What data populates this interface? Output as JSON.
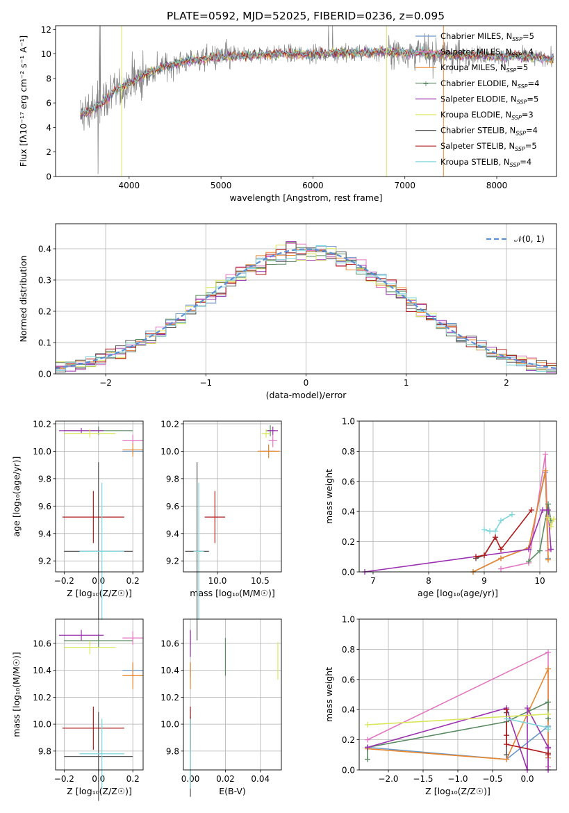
{
  "figure": {
    "title": "PLATE=0592, MJD=52025, FIBERID=0236, z=0.095"
  },
  "models": [
    {
      "label": "Chabrier MILES, N",
      "sub": "SSP",
      "tail": "=5",
      "color": "#6a98c8"
    },
    {
      "label": "Salpeter MILES, N",
      "sub": "SSP",
      "tail": "=4",
      "color": "#e377c2"
    },
    {
      "label": "Kroupa MILES, N",
      "sub": "SSP",
      "tail": "=5",
      "color": "#e8872e"
    },
    {
      "label": "Chabrier ELODIE, N",
      "sub": "SSP",
      "tail": "=4",
      "color": "#5a8a62"
    },
    {
      "label": "Salpeter ELODIE, N",
      "sub": "SSP",
      "tail": "=5",
      "color": "#9b30b0"
    },
    {
      "label": "Kroupa ELODIE, N",
      "sub": "SSP",
      "tail": "=3",
      "color": "#d9e65c"
    },
    {
      "label": "Chabrier STELIB, N",
      "sub": "SSP",
      "tail": "=4",
      "color": "#555555"
    },
    {
      "label": "Salpeter STELIB, N",
      "sub": "SSP",
      "tail": "=5",
      "color": "#b01a1a"
    },
    {
      "label": "Kroupa STELIB, N",
      "sub": "SSP",
      "tail": "=4",
      "color": "#7fd6dc"
    }
  ],
  "chart_data": [
    {
      "id": "spectrum",
      "type": "line",
      "xlabel": "wavelength [Angstrom, rest frame]",
      "ylabel": "Flux [fλ10⁻¹⁷ erg cm⁻² s⁻¹ A⁻¹]",
      "xlim": [
        3200,
        8650
      ],
      "ylim": [
        0,
        12.3
      ],
      "xticks": [
        4000,
        5000,
        6000,
        7000,
        8000
      ],
      "yticks": [
        0,
        2,
        4,
        6,
        8,
        10,
        12
      ],
      "data_series": {
        "name": "data",
        "color": "#808080"
      },
      "continuum": {
        "x": [
          3450,
          3600,
          3700,
          3850,
          4000,
          4200,
          4400,
          4600,
          4800,
          5000,
          5200,
          5400,
          5600,
          5800,
          6000,
          6300,
          6600,
          6800,
          7000,
          7300,
          7600,
          7800,
          8000,
          8200,
          8400,
          8600
        ],
        "y": [
          5.0,
          5.4,
          6.0,
          7.0,
          7.6,
          8.4,
          9.0,
          9.4,
          9.6,
          9.8,
          9.8,
          9.9,
          10.0,
          10.0,
          10.0,
          10.1,
          10.1,
          10.2,
          10.1,
          10.0,
          9.9,
          9.9,
          9.8,
          9.8,
          9.7,
          9.6
        ]
      },
      "legend_position": "top-right"
    },
    {
      "id": "residual-histogram",
      "type": "step",
      "xlabel": "(data-model)/error",
      "ylabel": "Normed distribution",
      "xlim": [
        -2.5,
        2.5
      ],
      "ylim": [
        0,
        0.48
      ],
      "xticks": [
        -2,
        -1,
        0,
        1,
        2
      ],
      "yticks": [
        0.0,
        0.1,
        0.2,
        0.3,
        0.4
      ],
      "reference": {
        "name": "𝒩(0, 1)",
        "color": "#5b8fd6",
        "dashed": true
      },
      "legend_position": "top-right",
      "grid": true
    },
    {
      "id": "age-vs-Z",
      "type": "errorbar",
      "xlabel": "Z [log₁₀(Z/Z☉)]",
      "ylabel": "age  [log₁₀(age/yr)]",
      "xlim": [
        -0.25,
        0.26
      ],
      "ylim": [
        9.12,
        10.22
      ],
      "xticks": [
        -0.2,
        0.0,
        0.2
      ],
      "yticks": [
        9.2,
        9.4,
        9.6,
        9.8,
        10.0,
        10.2
      ],
      "points": [
        {
          "model": 0,
          "x": 0.2,
          "y": 10.0,
          "xerr": 0.06,
          "yerr": 0.02
        },
        {
          "model": 1,
          "x": 0.2,
          "y": 10.08,
          "xerr": 0.06,
          "yerr": 0.04
        },
        {
          "model": 2,
          "x": 0.2,
          "y": 10.01,
          "xerr": 0.06,
          "yerr": 0.05
        },
        {
          "model": 3,
          "x": 0.0,
          "y": 10.15,
          "xerr": 0.2,
          "yerr": 0.03
        },
        {
          "model": 4,
          "x": -0.1,
          "y": 10.15,
          "xerr": 0.13,
          "yerr": 0.02
        },
        {
          "model": 5,
          "x": -0.05,
          "y": 10.13,
          "xerr": 0.15,
          "yerr": 0.03
        },
        {
          "model": 6,
          "x": 0.0,
          "y": 9.27,
          "xerr": 0.2,
          "yerr": 0.65
        },
        {
          "model": 7,
          "x": -0.03,
          "y": 9.52,
          "xerr": 0.18,
          "yerr": 0.19
        },
        {
          "model": 8,
          "x": 0.02,
          "y": 9.27,
          "xerr": 0.13,
          "yerr": 0.5
        }
      ],
      "grid": true
    },
    {
      "id": "age-vs-mass",
      "type": "errorbar",
      "xlabel": "mass [log₁₀(M/M☉)]",
      "ylabel": "",
      "xlim": [
        9.6,
        10.75
      ],
      "ylim": [
        9.12,
        10.22
      ],
      "xticks": [
        10.0,
        10.5
      ],
      "yticks": [
        9.2,
        9.4,
        9.6,
        9.8,
        10.0,
        10.2
      ],
      "points": [
        {
          "model": 0,
          "x": 10.6,
          "y": 10.0,
          "xerr": 0.08,
          "yerr": 0.03
        },
        {
          "model": 1,
          "x": 10.65,
          "y": 10.08,
          "xerr": 0.05,
          "yerr": 0.05
        },
        {
          "model": 2,
          "x": 10.6,
          "y": 10.0,
          "xerr": 0.13,
          "yerr": 0.05
        },
        {
          "model": 3,
          "x": 10.62,
          "y": 10.15,
          "xerr": 0.05,
          "yerr": 0.04
        },
        {
          "model": 4,
          "x": 10.65,
          "y": 10.15,
          "xerr": 0.06,
          "yerr": 0.03
        },
        {
          "model": 5,
          "x": 10.57,
          "y": 10.13,
          "xerr": 0.05,
          "yerr": 0.03
        },
        {
          "model": 6,
          "x": 9.76,
          "y": 9.27,
          "xerr": 0.14,
          "yerr": 0.65
        },
        {
          "model": 7,
          "x": 9.97,
          "y": 9.52,
          "xerr": 0.12,
          "yerr": 0.19
        },
        {
          "model": 8,
          "x": 9.78,
          "y": 9.27,
          "xerr": 0.06,
          "yerr": 0.5
        }
      ],
      "grid": true
    },
    {
      "id": "massweight-vs-age",
      "type": "line",
      "xlabel": "age  [log₁₀(age/yr)]",
      "ylabel": "mass weight",
      "xlim": [
        6.75,
        10.3
      ],
      "ylim": [
        0,
        1.0
      ],
      "xticks": [
        7,
        8,
        9,
        10
      ],
      "yticks": [
        0.0,
        0.2,
        0.4,
        0.6,
        0.8,
        1.0
      ],
      "series": [
        {
          "model": 0,
          "x": [
            8.8,
            9.3,
            9.8,
            10.1,
            10.15
          ],
          "y": [
            0.0,
            0.09,
            0.16,
            0.66,
            0.09
          ]
        },
        {
          "model": 1,
          "x": [
            9.3,
            9.8,
            10.1,
            10.15
          ],
          "y": [
            0.02,
            0.06,
            0.78,
            0.14
          ]
        },
        {
          "model": 2,
          "x": [
            8.8,
            9.3,
            9.8,
            10.1,
            10.15
          ],
          "y": [
            0.0,
            0.09,
            0.16,
            0.67,
            0.08
          ]
        },
        {
          "model": 3,
          "x": [
            9.8,
            10.0,
            10.15,
            10.2
          ],
          "y": [
            0.07,
            0.14,
            0.45,
            0.34
          ]
        },
        {
          "model": 4,
          "x": [
            6.85,
            9.8,
            10.05,
            10.15,
            10.2
          ],
          "y": [
            0.0,
            0.15,
            0.41,
            0.41,
            0.15
          ]
        },
        {
          "model": 5,
          "x": [
            10.15,
            10.2,
            10.25
          ],
          "y": [
            0.36,
            0.3,
            0.35
          ]
        },
        {
          "model": 6,
          "x": [
            8.85,
            9.0,
            9.2
          ],
          "y": [
            0.09,
            0.11,
            0.23
          ]
        },
        {
          "model": 7,
          "x": [
            8.85,
            9.0,
            9.2,
            9.3,
            9.85
          ],
          "y": [
            0.1,
            0.11,
            0.23,
            0.15,
            0.41
          ]
        },
        {
          "model": 8,
          "x": [
            9.0,
            9.1,
            9.2,
            9.3,
            9.5
          ],
          "y": [
            0.28,
            0.27,
            0.27,
            0.34,
            0.38
          ]
        }
      ],
      "grid": true
    },
    {
      "id": "mass-vs-Z",
      "type": "errorbar",
      "xlabel": "Z [log₁₀(Z/Z☉)]",
      "ylabel": "mass [log₁₀(M/M☉)]",
      "xlim": [
        -0.25,
        0.26
      ],
      "ylim": [
        9.66,
        10.78
      ],
      "xticks": [
        -0.2,
        0.0,
        0.2
      ],
      "yticks": [
        9.8,
        10.0,
        10.2,
        10.4,
        10.6
      ],
      "points": [
        {
          "model": 0,
          "x": 0.2,
          "y": 10.4,
          "xerr": 0.06,
          "yerr": 0.05
        },
        {
          "model": 1,
          "x": 0.2,
          "y": 10.64,
          "xerr": 0.06,
          "yerr": 0.05
        },
        {
          "model": 2,
          "x": 0.2,
          "y": 10.36,
          "xerr": 0.06,
          "yerr": 0.1
        },
        {
          "model": 3,
          "x": 0.0,
          "y": 10.62,
          "xerr": 0.2,
          "yerr": 0.05
        },
        {
          "model": 4,
          "x": -0.1,
          "y": 10.66,
          "xerr": 0.13,
          "yerr": 0.04
        },
        {
          "model": 5,
          "x": -0.05,
          "y": 10.57,
          "xerr": 0.15,
          "yerr": 0.05
        },
        {
          "model": 6,
          "x": 0.0,
          "y": 9.76,
          "xerr": 0.2,
          "yerr": 0.33
        },
        {
          "model": 7,
          "x": -0.03,
          "y": 9.97,
          "xerr": 0.18,
          "yerr": 0.16
        },
        {
          "model": 8,
          "x": 0.02,
          "y": 9.78,
          "xerr": 0.13,
          "yerr": 0.26
        }
      ],
      "grid": true
    },
    {
      "id": "mass-vs-ebv",
      "type": "errorbar",
      "xlabel": "E(B-V)",
      "ylabel": "",
      "xlim": [
        -0.004,
        0.052
      ],
      "ylim": [
        9.66,
        10.78
      ],
      "xticks": [
        0.0,
        0.02,
        0.04
      ],
      "yticks": [
        9.8,
        10.0,
        10.2,
        10.4,
        10.6
      ],
      "points": [
        {
          "model": 0,
          "x": 0.0,
          "y": 10.4,
          "xerr": 0,
          "yerr": 0.05
        },
        {
          "model": 1,
          "x": 0.0,
          "y": 10.64,
          "xerr": 0,
          "yerr": 0.05
        },
        {
          "model": 2,
          "x": 0.0,
          "y": 10.36,
          "xerr": 0,
          "yerr": 0.1
        },
        {
          "model": 3,
          "x": 0.02,
          "y": 10.5,
          "xerr": 0,
          "yerr": 0.14
        },
        {
          "model": 4,
          "x": 0.0,
          "y": 10.6,
          "xerr": 0,
          "yerr": 0.1
        },
        {
          "model": 5,
          "x": 0.05,
          "y": 10.47,
          "xerr": 0,
          "yerr": 0.14
        },
        {
          "model": 6,
          "x": 0.0,
          "y": 9.76,
          "xerr": 0,
          "yerr": 0.3
        },
        {
          "model": 7,
          "x": 0.0,
          "y": 9.97,
          "xerr": 0,
          "yerr": 0.16
        },
        {
          "model": 8,
          "x": 0.0,
          "y": 9.78,
          "xerr": 0,
          "yerr": 0.26
        }
      ],
      "grid": true
    },
    {
      "id": "massweight-vs-Z",
      "type": "line",
      "xlabel": "Z [log₁₀(Z/Z☉)]",
      "ylabel": "mass weight",
      "xlim": [
        -2.42,
        0.42
      ],
      "ylim": [
        0,
        1.0
      ],
      "xticks": [
        -2.0,
        -1.5,
        -1.0,
        -0.5,
        0.0
      ],
      "yticks": [
        0.0,
        0.2,
        0.4,
        0.6,
        0.8,
        1.0
      ],
      "series": [
        {
          "model": 0,
          "x": [
            -2.3,
            -0.3,
            0.3,
            0.3
          ],
          "y": [
            0.15,
            0.07,
            0.29,
            0.08
          ]
        },
        {
          "model": 1,
          "x": [
            -2.3,
            0.3,
            0.3,
            0.3
          ],
          "y": [
            0.2,
            0.78,
            0.14,
            0.02
          ]
        },
        {
          "model": 2,
          "x": [
            -2.3,
            -0.3,
            0.3,
            0.3
          ],
          "y": [
            0.14,
            0.07,
            0.67,
            0.08
          ]
        },
        {
          "model": 3,
          "x": [
            -2.3,
            -2.3,
            -0.3,
            0.3,
            0.3
          ],
          "y": [
            0.07,
            0.15,
            0.32,
            0.45,
            0.34
          ]
        },
        {
          "model": 4,
          "x": [
            -2.3,
            -0.3,
            0.0,
            0.0,
            0.3,
            0.3
          ],
          "y": [
            0.15,
            0.41,
            0.0,
            0.41,
            0.15,
            0.0
          ]
        },
        {
          "model": 5,
          "x": [
            -2.3,
            0.3
          ],
          "y": [
            0.3,
            0.37
          ]
        },
        {
          "model": 6,
          "x": [
            -0.3,
            -0.3,
            -0.3
          ],
          "y": [
            0.1,
            0.23,
            0.38
          ]
        },
        {
          "model": 7,
          "x": [
            -0.3,
            -0.3,
            -0.3,
            0.3,
            0.3
          ],
          "y": [
            0.4,
            0.23,
            0.17,
            0.11,
            0.1
          ]
        },
        {
          "model": 8,
          "x": [
            -0.3,
            0.3,
            0.3
          ],
          "y": [
            0.34,
            0.28,
            0.27
          ]
        }
      ],
      "grid": true
    }
  ]
}
